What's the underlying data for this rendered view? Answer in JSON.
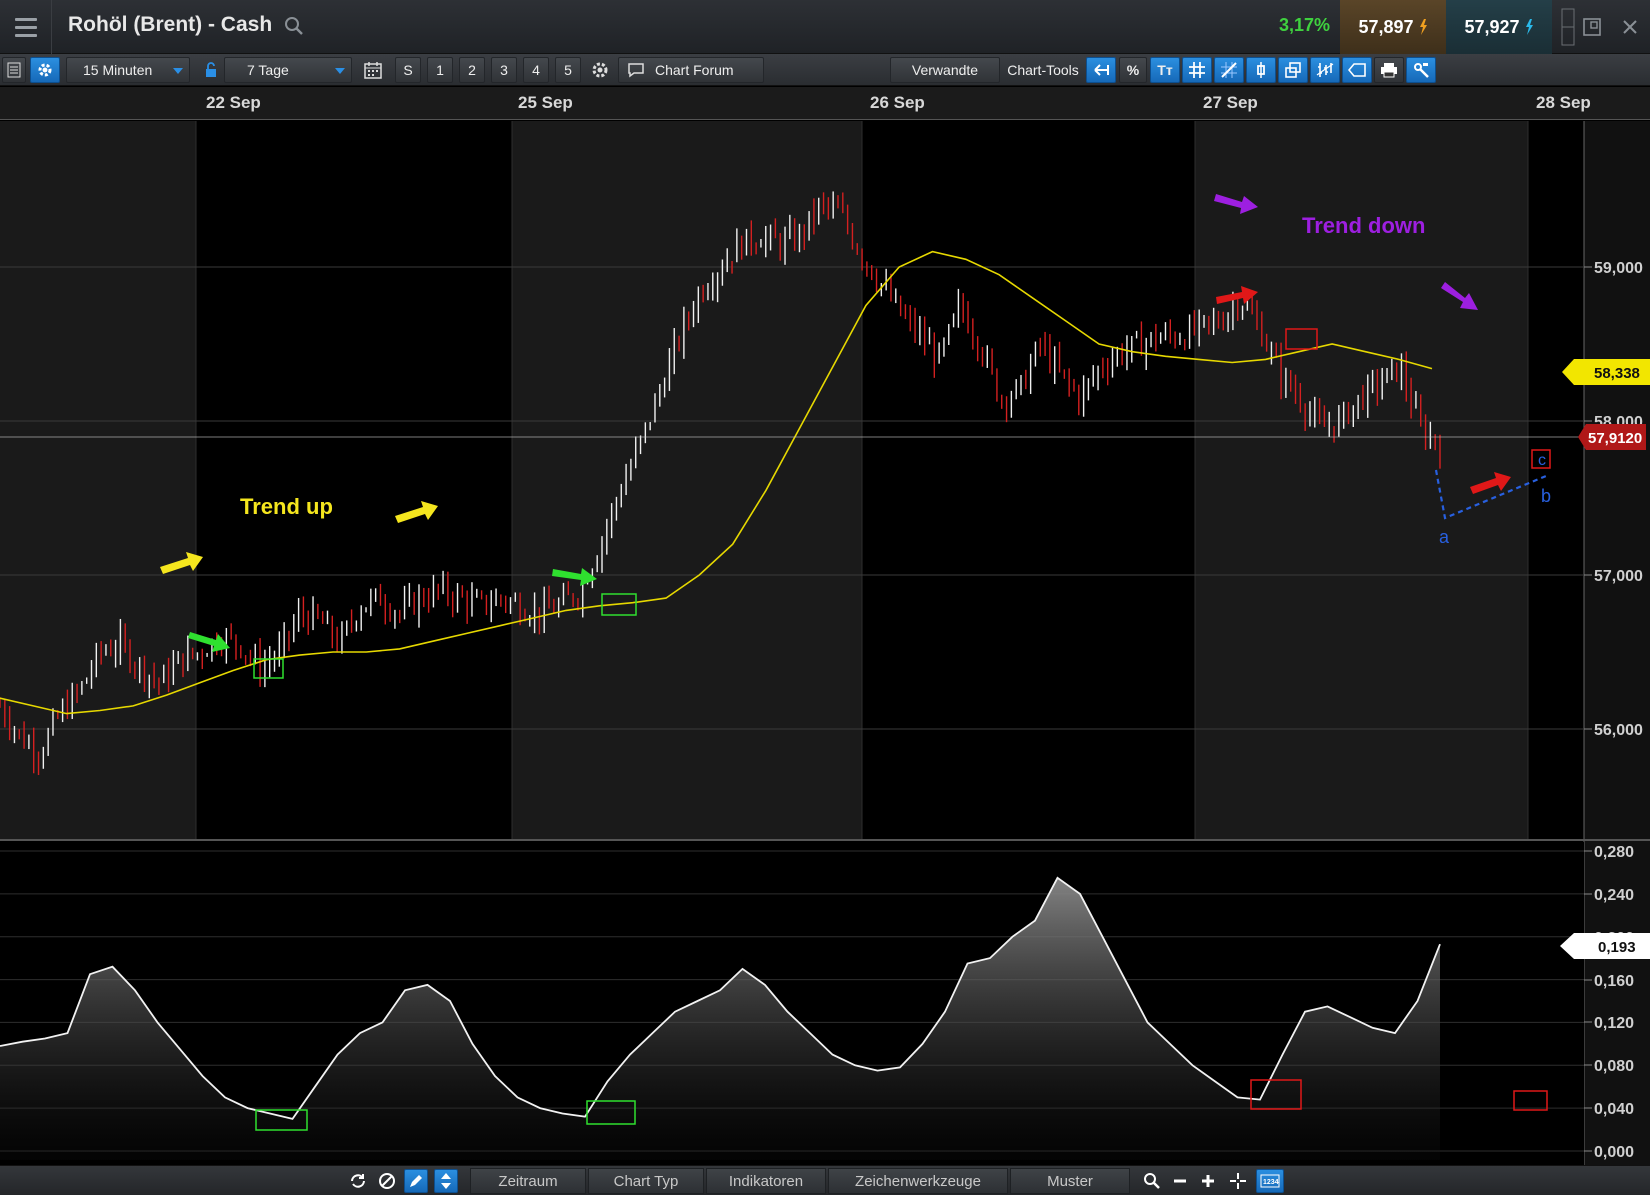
{
  "header": {
    "title": "Rohöl (Brent) - Cash",
    "change_pct": "3,17%",
    "bid": "57,897",
    "ask": "57,927",
    "colors": {
      "change": "#3fd13f",
      "bid_bg": "#4a3921",
      "ask_bg": "#1f363e"
    }
  },
  "toolbar": {
    "interval": "15 Minuten",
    "range": "7 Tage",
    "shortcuts": [
      "S",
      "1",
      "2",
      "3",
      "4",
      "5"
    ],
    "chart_forum": "Chart Forum",
    "verwandte": "Verwandte",
    "chart_tools": "Chart-Tools",
    "percent": "%",
    "text_tool": "Tт",
    "icons": [
      "list-icon",
      "gear-icon",
      "lock-icon",
      "calendar-icon",
      "settings-icon",
      "chat-icon",
      "back-icon",
      "text-icon",
      "grid-icon",
      "crosshair-icon",
      "candle-icon",
      "compare-icon",
      "bar-icon",
      "label-icon",
      "print-icon",
      "config-icon"
    ]
  },
  "date_axis": [
    "22 Sep",
    "25 Sep",
    "26 Sep",
    "27 Sep",
    "28 Sep"
  ],
  "price_axis": {
    "ticks": [
      "59,000",
      "58,000",
      "57,000",
      "56,000"
    ],
    "ma_label": "58,338",
    "last_label": "57,9120",
    "colors": {
      "ma": "#f2e600",
      "last": "#b01818"
    }
  },
  "indicator_axis": {
    "ticks": [
      "0,280",
      "0,240",
      "0,200",
      "0,160",
      "0,120",
      "0,080",
      "0,040",
      "0,000"
    ],
    "last_label": "0,193"
  },
  "annotations": {
    "trend_up": "Trend up",
    "trend_down": "Trend down",
    "wave_labels": [
      "a",
      "b",
      "c"
    ],
    "colors": {
      "trend_up": "#f5e61e",
      "trend_down": "#9d1fe0",
      "green": "#2fe02f",
      "red": "#e01818",
      "blue": "#2860e0"
    }
  },
  "chart_data": {
    "type": "bar",
    "title": "",
    "categories": [
      "22 Sep",
      "25 Sep",
      "26 Sep",
      "27 Sep",
      "28 Sep"
    ],
    "price_path": [
      56.15,
      55.95,
      55.85,
      56.1,
      56.25,
      56.5,
      56.55,
      56.4,
      56.3,
      56.45,
      56.5,
      56.6,
      56.55,
      56.4,
      56.5,
      56.75,
      56.7,
      56.55,
      56.8,
      56.85,
      56.75,
      56.85,
      56.9,
      56.85,
      56.8,
      56.85,
      56.8,
      56.75,
      56.8,
      56.9,
      57.2,
      57.55,
      57.85,
      58.2,
      58.55,
      58.85,
      59.0,
      59.15,
      59.2,
      59.15,
      59.2,
      59.4,
      59.35,
      59.1,
      58.9,
      58.7,
      58.55,
      58.4,
      58.75,
      58.5,
      58.15,
      58.2,
      58.5,
      58.3,
      58.15,
      58.35,
      58.45,
      58.5,
      58.55,
      58.55,
      58.6,
      58.65,
      58.8,
      58.6,
      58.3,
      58.15,
      57.95,
      58.0,
      58.15,
      58.25,
      58.35,
      57.95,
      57.85
    ],
    "moving_average": [
      56.2,
      56.15,
      56.1,
      56.12,
      56.15,
      56.22,
      56.3,
      56.38,
      56.45,
      56.48,
      56.5,
      56.5,
      56.52,
      56.57,
      56.62,
      56.67,
      56.72,
      56.77,
      56.8,
      56.82,
      56.85,
      57.0,
      57.2,
      57.55,
      57.95,
      58.35,
      58.75,
      59.0,
      59.1,
      59.05,
      58.95,
      58.8,
      58.65,
      58.5,
      58.45,
      58.42,
      58.4,
      58.38,
      58.4,
      58.45,
      58.5,
      58.45,
      58.4,
      58.34
    ],
    "indicator": [
      0.098,
      0.102,
      0.105,
      0.11,
      0.165,
      0.172,
      0.15,
      0.12,
      0.095,
      0.07,
      0.05,
      0.04,
      0.035,
      0.03,
      0.06,
      0.09,
      0.11,
      0.12,
      0.15,
      0.155,
      0.14,
      0.1,
      0.07,
      0.05,
      0.04,
      0.035,
      0.032,
      0.065,
      0.09,
      0.11,
      0.13,
      0.14,
      0.15,
      0.17,
      0.155,
      0.13,
      0.11,
      0.09,
      0.08,
      0.075,
      0.078,
      0.1,
      0.13,
      0.175,
      0.18,
      0.2,
      0.215,
      0.255,
      0.24,
      0.2,
      0.16,
      0.12,
      0.1,
      0.08,
      0.065,
      0.05,
      0.048,
      0.09,
      0.13,
      0.135,
      0.125,
      0.115,
      0.11,
      0.14,
      0.193
    ],
    "ylim": [
      55.3,
      59.9
    ],
    "indicator_ylim": [
      0,
      0.28
    ],
    "grid": true
  }
}
